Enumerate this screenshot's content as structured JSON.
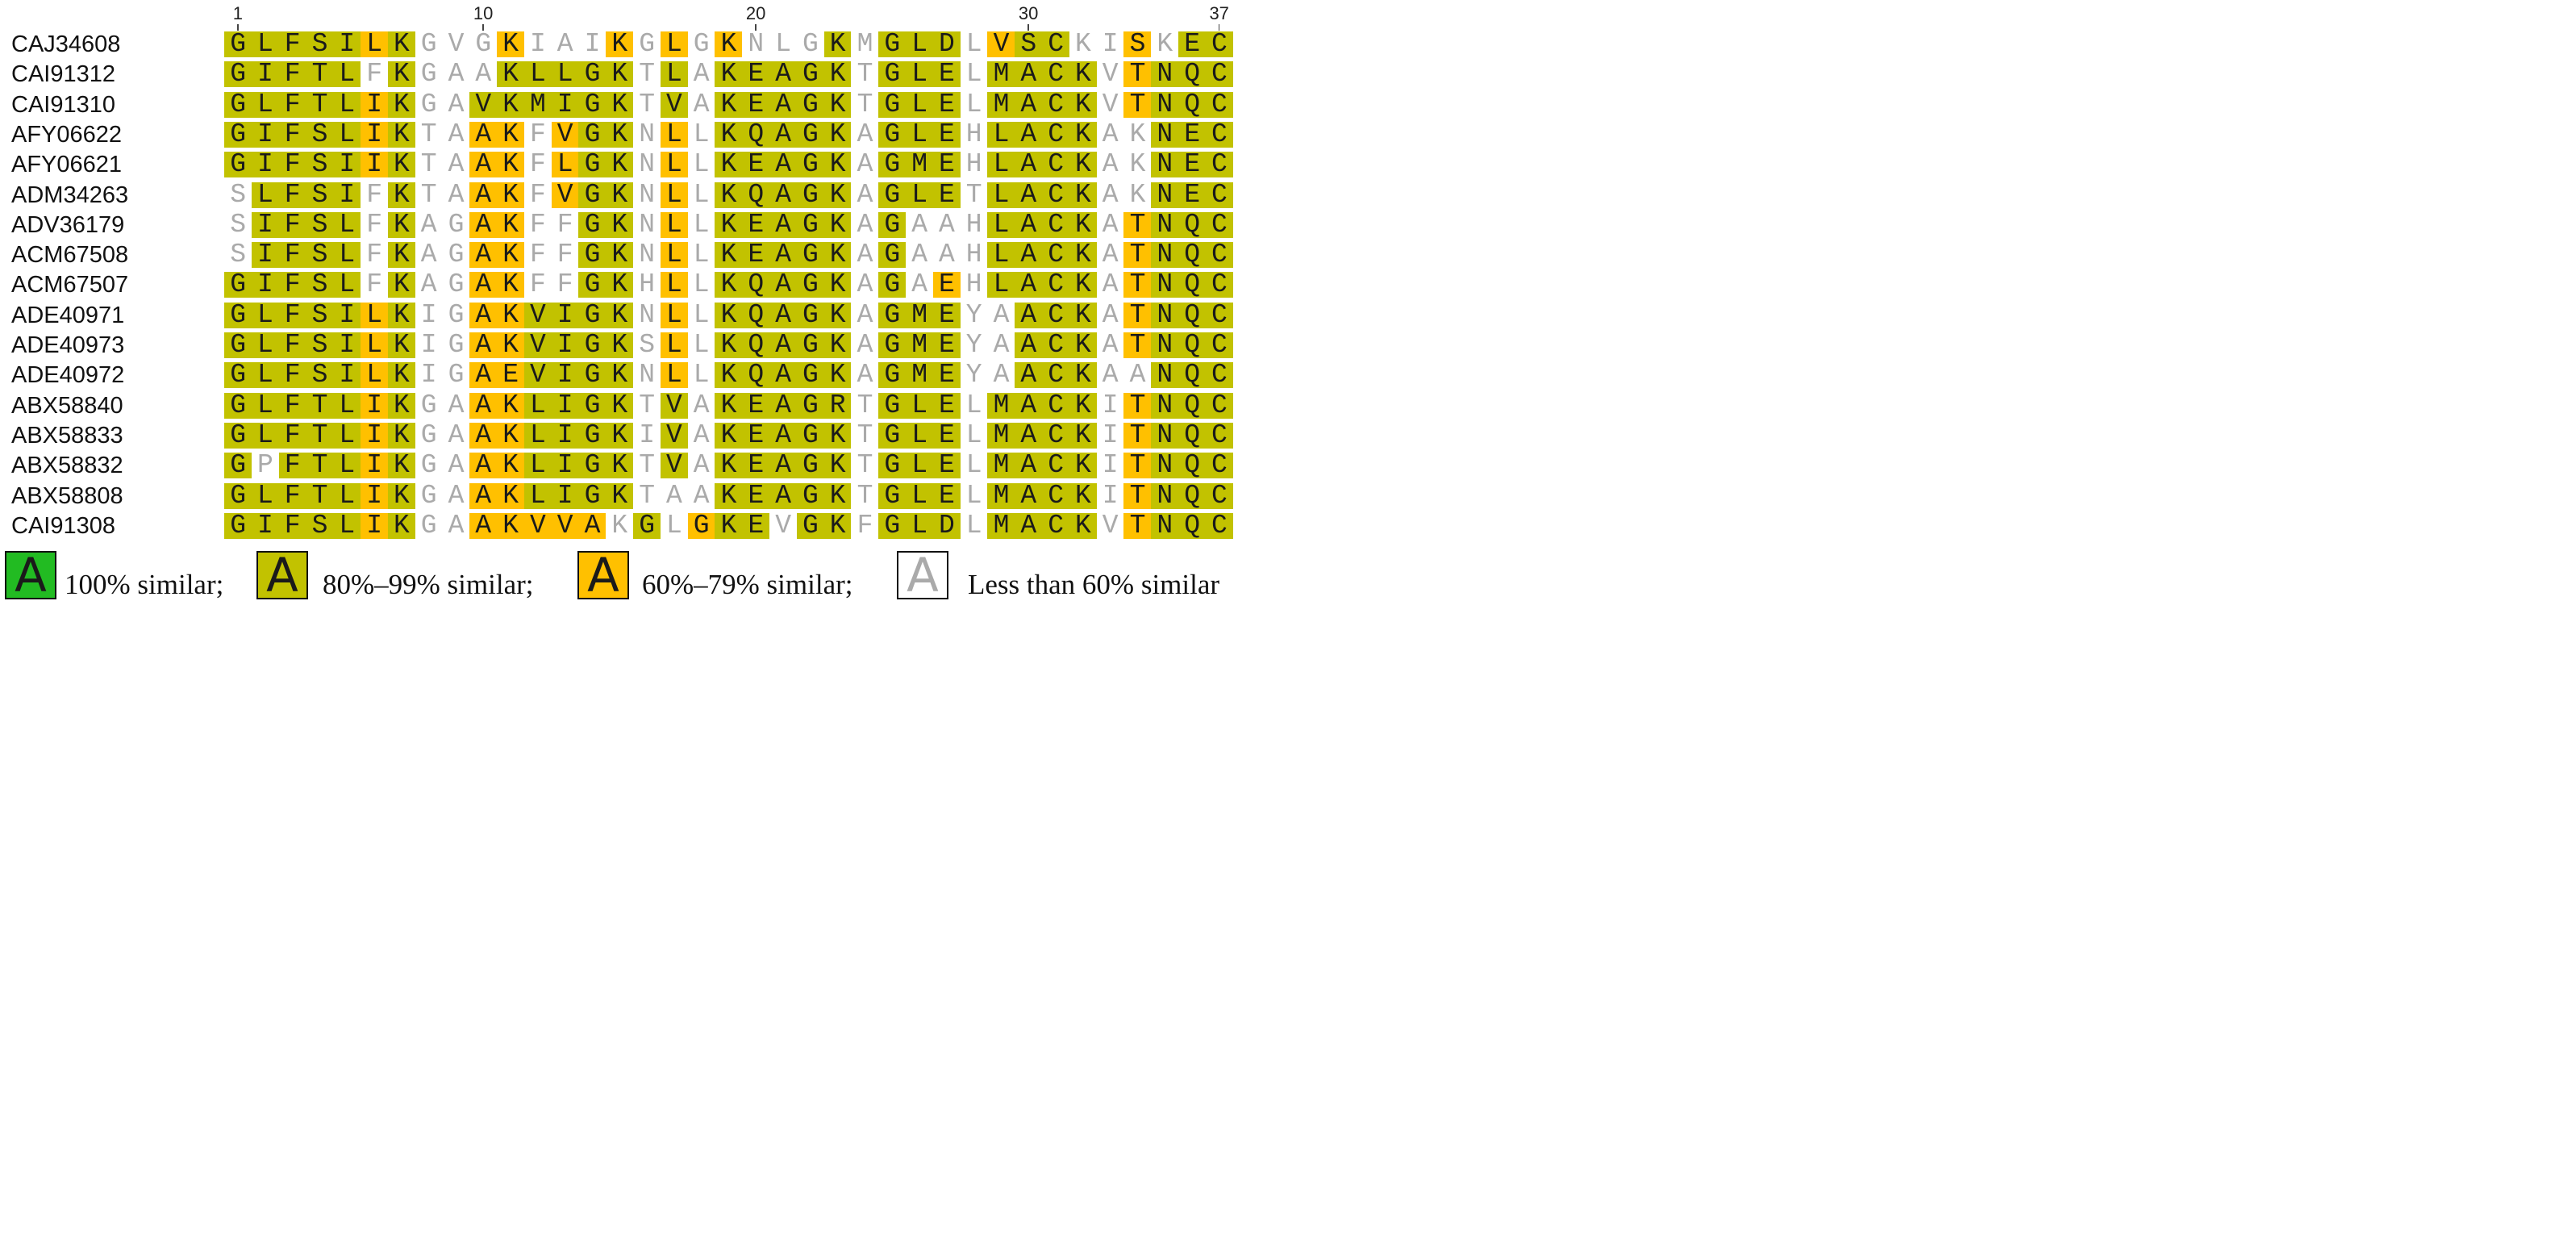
{
  "ruler": {
    "ticks": [
      {
        "label": "1",
        "pos": 1
      },
      {
        "label": "10",
        "pos": 10
      },
      {
        "label": "20",
        "pos": 20
      },
      {
        "label": "30",
        "pos": 30
      },
      {
        "label": "37",
        "pos": 37
      }
    ]
  },
  "colors": {
    "c100": "#22bb22",
    "c80": "#c2c200",
    "c60": "#ffc000",
    "clow": "#ffffff",
    "text_low": "#aaaaaa",
    "text_high": "#1a1a1a"
  },
  "sequences": [
    {
      "id": "CAJ34608",
      "seq": "GLFSILKGVGKIAIKGLGKNLGKMGLDLVSCKISKEC",
      "cls": "8888868lll6lll6l6l6lll8l888l688ll6l88"
    },
    {
      "id": "CAI91312",
      "seq": "GIFTLFKGAAKLLGKTLAKEAGKTGLELMACKVTNQC",
      "cls": "88888l8lll88888l8l88888l888l8888l6888"
    },
    {
      "id": "CAI91310",
      "seq": "GLFTLIKGAVKMIGKTVAKEAGKTGLELMACKVTNQC",
      "cls": "8888868ll888888l8l88888l888l8888l6888"
    },
    {
      "id": "AFY06622",
      "seq": "GIFSLIKTAAKFVGKNLLKQAGKAGLEHLACKAKNEC",
      "cls": "8888868ll66l688l6l88888l888l8888ll888"
    },
    {
      "id": "AFY06621",
      "seq": "GIFSIIKTAAKFLGKNLLKEAGKAGMEHLACKAKNEC",
      "cls": "8888868ll66l688l6l88888l888l8888ll888"
    },
    {
      "id": "ADM34263",
      "seq": "SLFSIFKTAAKFVGKNLLKQAGKAGLETLACKAKNEC",
      "cls": "l8888l8ll66l688l6l88888l888l8888ll888"
    },
    {
      "id": "ADV36179",
      "seq": "SIFSLFKAGAKFFGKNLLKEAGKAGAAHLACKATNQC",
      "cls": "l8888l8ll66ll88l6l88888l8lll8888l6888"
    },
    {
      "id": "ACM67508",
      "seq": "SIFSLFKAGAKFFGKNLLKEAGKAGAAHLACKATNQC",
      "cls": "l8888l8ll66ll88l6l88888l8lll8888l6888"
    },
    {
      "id": "ACM67507",
      "seq": "GIFSLFKAGAKFFGKHLLKQAGKAGAEHLACKATNQC",
      "cls": "88888l8ll66ll88l6l88888l8l6l8888l6888"
    },
    {
      "id": "ADE40971",
      "seq": "GLFSILKIGAKVIGKNLLKQAGKAGMEYAACKATNQC",
      "cls": "8888868ll668888l6l88888l888ll888l6888"
    },
    {
      "id": "ADE40973",
      "seq": "GLFSILKIGAKVIGKSLLKQAGKAGMEYAACKATNQC",
      "cls": "8888868ll668888l6l88888l888ll888l6888"
    },
    {
      "id": "ADE40972",
      "seq": "GLFSILKIGAEVIGKNLLKQAGKAGMEYAACKAANQC",
      "cls": "8888868ll668888l6l88888l888ll888ll888"
    },
    {
      "id": "ABX58840",
      "seq": "GLFTLIKGAAKLIGKTVAKEAGRTGLELMACKITNQC",
      "cls": "8888868ll668888l8l88888l888l8888l6888"
    },
    {
      "id": "ABX58833",
      "seq": "GLFTLIKGAAKLIGKIVAKEAGKTGLELMACKITNQC",
      "cls": "8888868ll668888l8l88888l888l8888l6888"
    },
    {
      "id": "ABX58832",
      "seq": "GPFTLIKGAAKLIGKTVAKEAGKTGLELMACKITNQC",
      "cls": "8l88868ll668888l8l88888l888l8888l6888"
    },
    {
      "id": "ABX58808",
      "seq": "GLFTLIKGAAKLIGKTAAKEAGKTGLELMACKITNQC",
      "cls": "8888868ll668888lll88888l888l8888l6888"
    },
    {
      "id": "CAI91308",
      "seq": "GIFSLIKGAAKVVAKGLGKEVGKFGLDLMACKVTNQC",
      "cls": "8888868ll66666l8l688l88l888l8888l6888"
    }
  ],
  "legend": [
    {
      "glyph": "A",
      "level": "c100",
      "text": "100% similar;"
    },
    {
      "glyph": "A",
      "level": "c80",
      "text": "80%–99% similar;"
    },
    {
      "glyph": "A",
      "level": "c60",
      "text": "60%–79% similar;"
    },
    {
      "glyph": "A",
      "level": "clow",
      "text": "Less than 60% similar"
    }
  ]
}
